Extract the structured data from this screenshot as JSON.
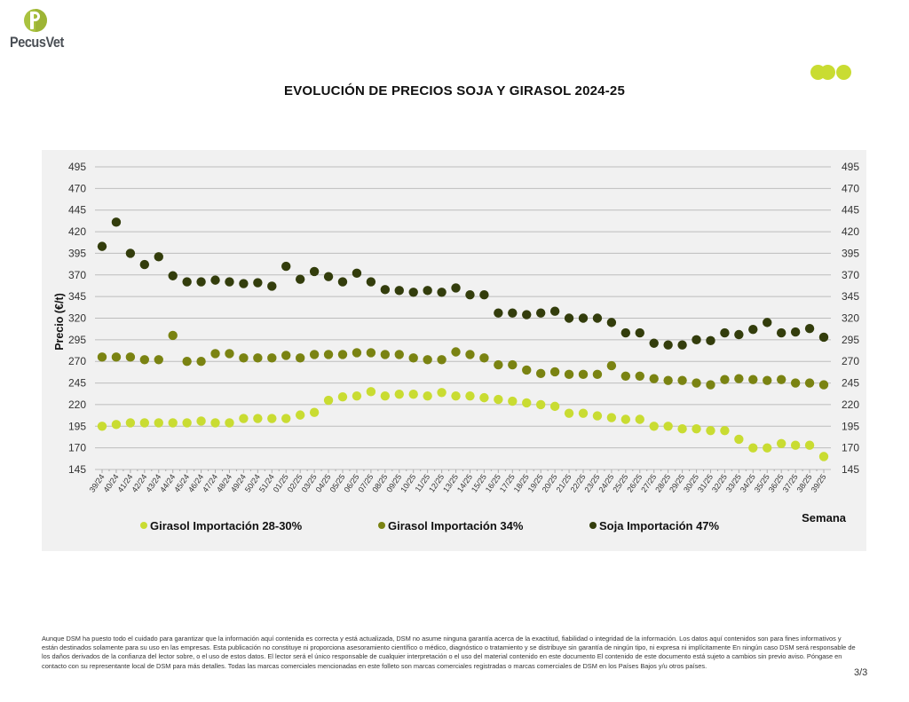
{
  "header": {
    "brand": "PecusVet",
    "decoration": "three-dots-icon",
    "title": "EVOLUCIÓN DE PRECIOS SOJA Y GIRASOL 2024-25"
  },
  "chart_data": {
    "type": "scatter",
    "title": "EVOLUCIÓN DE PRECIOS SOJA Y GIRASOL 2024-25",
    "xlabel": "Semana",
    "ylabel": "Precio (€/t)",
    "ylim": [
      145,
      495
    ],
    "yticks": [
      145,
      170,
      195,
      220,
      245,
      270,
      295,
      320,
      345,
      370,
      395,
      420,
      445,
      470,
      495
    ],
    "grid": true,
    "legend_position": "bottom",
    "categories": [
      "39/24",
      "40/24",
      "41/24",
      "42/24",
      "43/24",
      "44/24",
      "45/24",
      "46/24",
      "47/24",
      "48/24",
      "49/24",
      "50/24",
      "51/24",
      "01/25",
      "02/25",
      "03/25",
      "04/25",
      "05/25",
      "06/25",
      "07/25",
      "08/25",
      "09/25",
      "10/25",
      "11/25",
      "12/25",
      "13/25",
      "14/25",
      "15/25",
      "16/25",
      "17/25",
      "18/25",
      "19/25",
      "20/25",
      "21/25",
      "22/25",
      "23/25",
      "24/25",
      "25/25",
      "26/25",
      "27/25",
      "28/25",
      "29/25",
      "30/25",
      "31/25",
      "32/25",
      "33/25",
      "34/25",
      "35/25",
      "36/25",
      "37/25",
      "38/25",
      "39/25"
    ],
    "series": [
      {
        "name": "Girasol Importación 28-30%",
        "color": "#c9dc32",
        "values": [
          195,
          197,
          199,
          199,
          199,
          199,
          199,
          201,
          199,
          199,
          204,
          204,
          204,
          204,
          208,
          211,
          225,
          229,
          230,
          235,
          230,
          232,
          232,
          230,
          234,
          230,
          230,
          228,
          226,
          224,
          222,
          220,
          218,
          210,
          210,
          207,
          205,
          203,
          203,
          195,
          195,
          192,
          192,
          190,
          190,
          180,
          170,
          170,
          175,
          173,
          173,
          160
        ]
      },
      {
        "name": "Girasol Importación 34%",
        "color": "#7a8312",
        "values": [
          275,
          275,
          275,
          272,
          272,
          300,
          270,
          270,
          279,
          279,
          274,
          274,
          274,
          277,
          274,
          278,
          278,
          278,
          280,
          280,
          278,
          278,
          274,
          272,
          272,
          281,
          278,
          274,
          266,
          266,
          260,
          256,
          258,
          255,
          255,
          255,
          265,
          253,
          253,
          250,
          248,
          248,
          245,
          243,
          249,
          250,
          249,
          248,
          249,
          245,
          245,
          243
        ]
      },
      {
        "name": "Soja Importación 47%",
        "color": "#333d0c",
        "values": [
          403,
          431,
          395,
          382,
          391,
          369,
          362,
          362,
          364,
          362,
          360,
          361,
          357,
          380,
          365,
          374,
          368,
          362,
          372,
          362,
          353,
          352,
          350,
          352,
          350,
          355,
          347,
          347,
          326,
          326,
          324,
          326,
          328,
          320,
          320,
          320,
          315,
          303,
          303,
          291,
          289,
          289,
          295,
          294,
          303,
          301,
          307,
          315,
          303,
          304,
          308,
          298
        ]
      }
    ]
  },
  "footer": {
    "disclaimer": "Aunque DSM ha puesto todo el cuidado para garantizar que la información aquí contenida es correcta y está actualizada, DSM no asume ninguna garantía acerca de la exactitud, fiabilidad o integridad de la información. Los datos aquí contenidos son para fines informativos y están destinados solamente para su uso en las empresas. Esta publicación no constituye ni proporciona asesoramiento científico o médico, diagnóstico o tratamiento y se distribuye sin garantía de ningún tipo, ni expresa ni implícitamente En ningún caso DSM será responsable de los daños derivados de la confianza del lector sobre, o el uso de estos datos. El lector será el único responsable de cualquier interpretación o el uso del material contenido en este documento El contenido de este documento está sujeto a cambios sin previo aviso. Póngase en contacto con su representante local de DSM para más detalles. Todas las marcas comerciales mencionadas en este folleto son marcas comerciales registradas o marcas comerciales de DSM en los Países Bajos y/u otros países.",
    "page": "3/3"
  }
}
